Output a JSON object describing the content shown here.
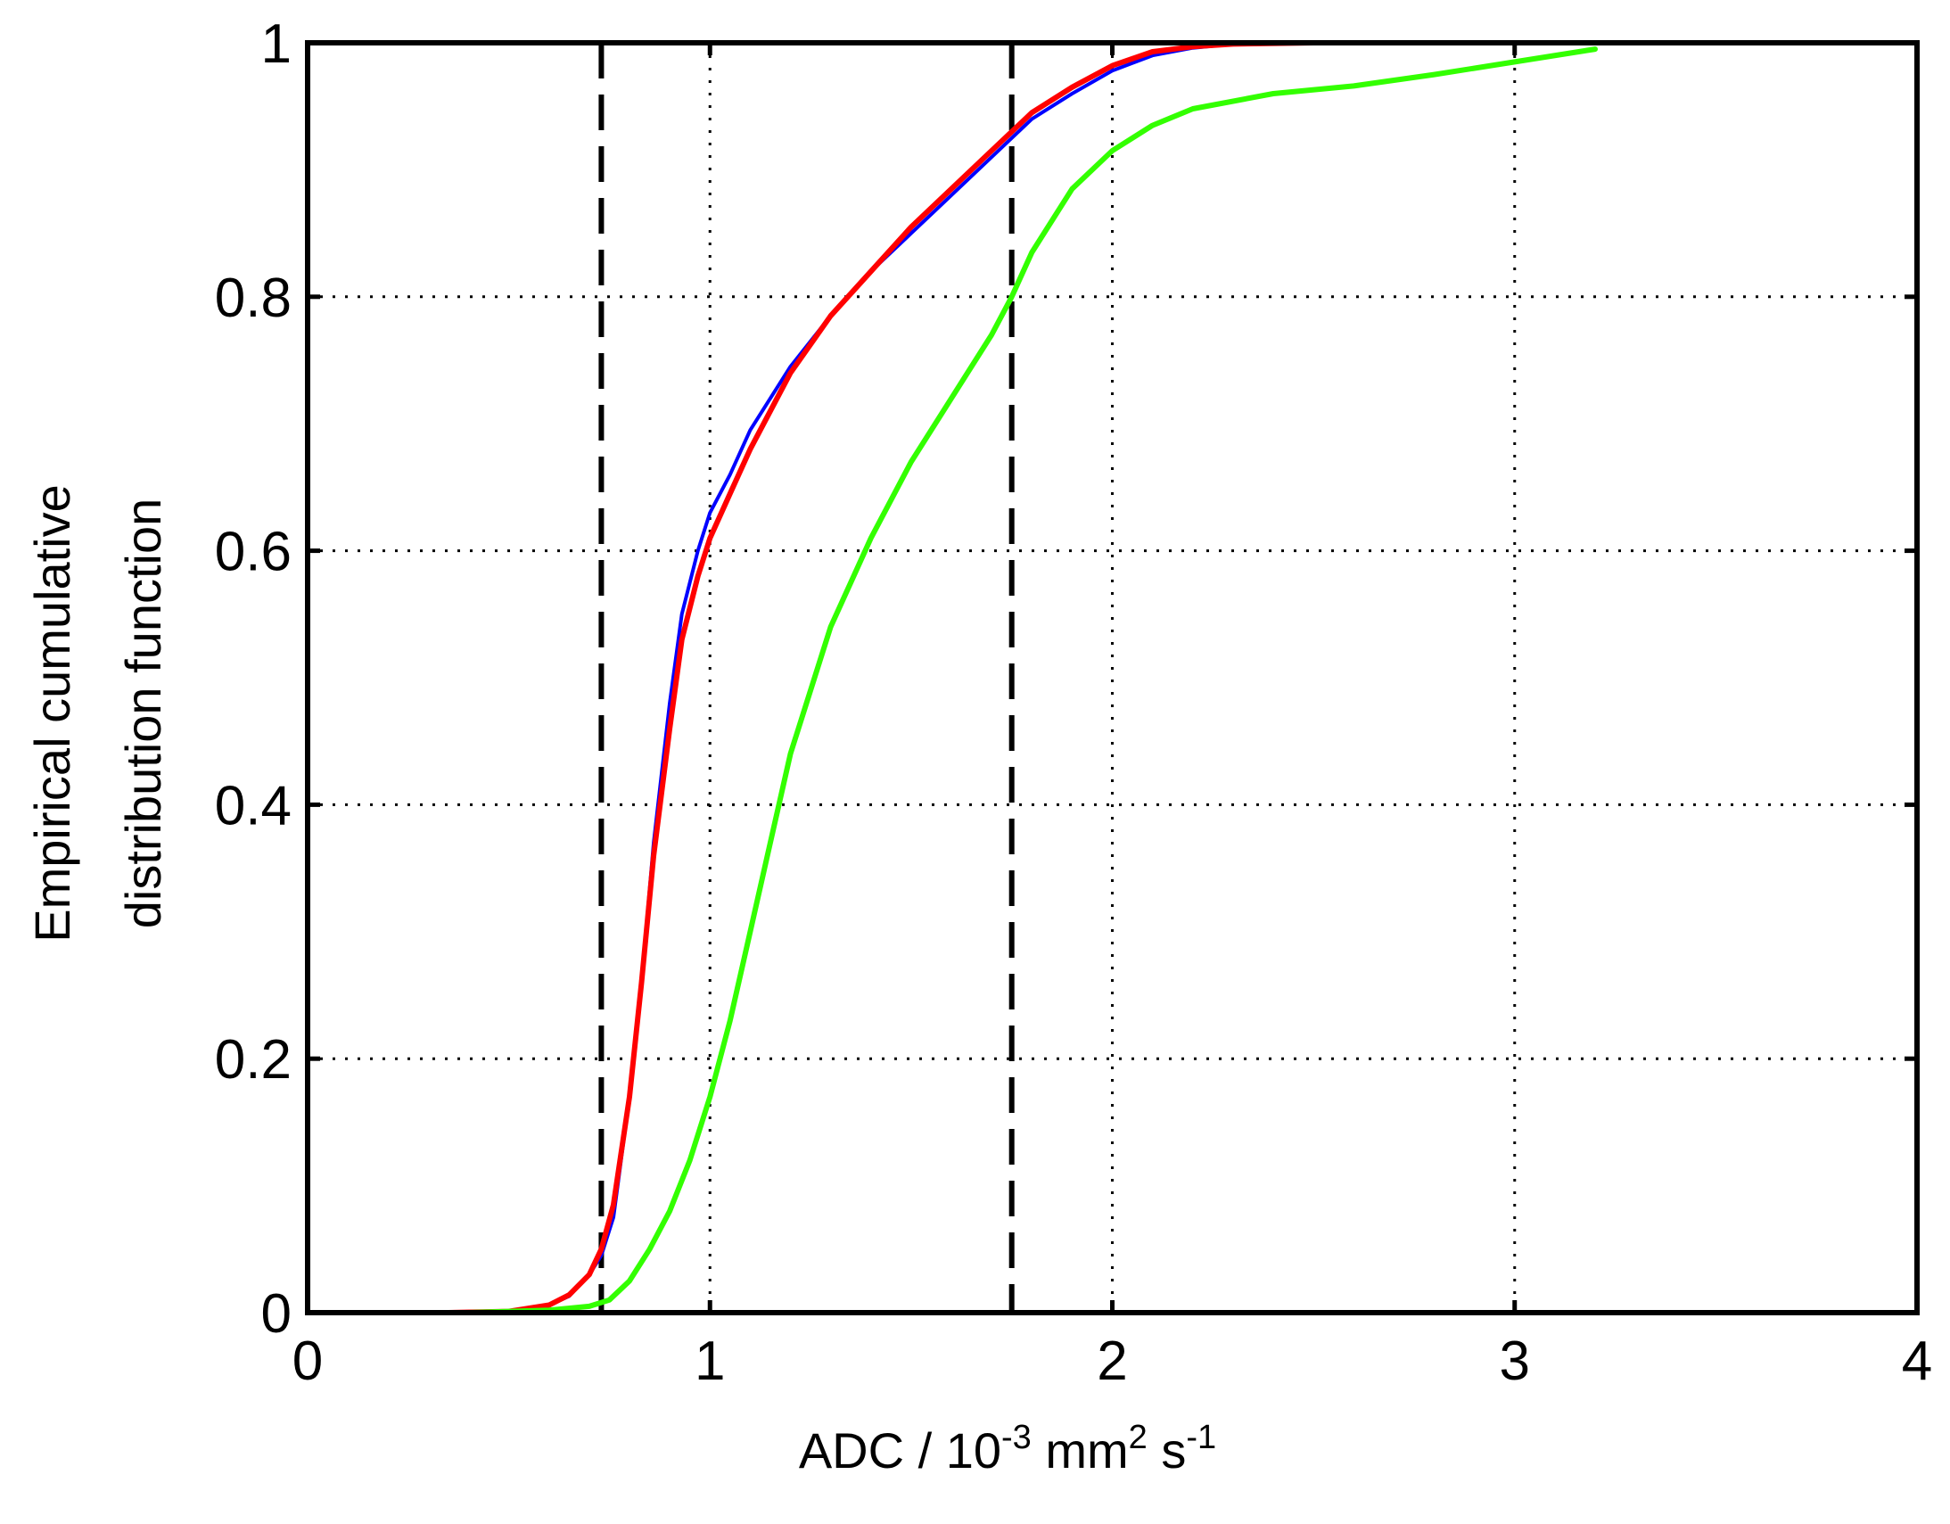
{
  "chart_data": {
    "type": "line",
    "title": "",
    "xlabel": {
      "main": "ADC / 10",
      "exp1": "-3",
      "mid": " mm",
      "exp2": "2",
      "mid2": " s",
      "exp3": "-1"
    },
    "ylabel": [
      "Empirical cumulative",
      "distribution function"
    ],
    "xlim": [
      0,
      4
    ],
    "ylim": [
      0,
      1
    ],
    "xticks": [
      0,
      1,
      2,
      3,
      4
    ],
    "xtick_labels": [
      "0",
      "1",
      "2",
      "3",
      "4"
    ],
    "yticks": [
      0,
      0.2,
      0.4,
      0.6,
      0.8,
      1
    ],
    "ytick_labels": [
      "0",
      "0.2",
      "0.4",
      "0.6",
      "0.8",
      "1"
    ],
    "grid": true,
    "reference_lines_x": [
      0.73,
      1.75
    ],
    "series": [
      {
        "color": "#0000ff",
        "points": [
          [
            0.35,
            0
          ],
          [
            0.5,
            0.001
          ],
          [
            0.6,
            0.006
          ],
          [
            0.65,
            0.013
          ],
          [
            0.7,
            0.03
          ],
          [
            0.73,
            0.045
          ],
          [
            0.76,
            0.075
          ],
          [
            0.8,
            0.17
          ],
          [
            0.83,
            0.26
          ],
          [
            0.86,
            0.37
          ],
          [
            0.9,
            0.48
          ],
          [
            0.93,
            0.55
          ],
          [
            0.97,
            0.6
          ],
          [
            1.0,
            0.63
          ],
          [
            1.05,
            0.66
          ],
          [
            1.1,
            0.695
          ],
          [
            1.2,
            0.745
          ],
          [
            1.3,
            0.785
          ],
          [
            1.4,
            0.82
          ],
          [
            1.5,
            0.85
          ],
          [
            1.6,
            0.88
          ],
          [
            1.7,
            0.91
          ],
          [
            1.75,
            0.925
          ],
          [
            1.8,
            0.94
          ],
          [
            1.9,
            0.96
          ],
          [
            2.0,
            0.978
          ],
          [
            2.1,
            0.99
          ],
          [
            2.2,
            0.996
          ],
          [
            2.3,
            0.999
          ],
          [
            2.5,
            1.0
          ],
          [
            2.75,
            1.0
          ]
        ]
      },
      {
        "color": "#ff0000",
        "points": [
          [
            0.35,
            0
          ],
          [
            0.5,
            0.001
          ],
          [
            0.6,
            0.006
          ],
          [
            0.65,
            0.014
          ],
          [
            0.7,
            0.03
          ],
          [
            0.73,
            0.05
          ],
          [
            0.76,
            0.085
          ],
          [
            0.8,
            0.17
          ],
          [
            0.83,
            0.26
          ],
          [
            0.86,
            0.36
          ],
          [
            0.9,
            0.46
          ],
          [
            0.93,
            0.53
          ],
          [
            0.97,
            0.58
          ],
          [
            1.0,
            0.61
          ],
          [
            1.05,
            0.645
          ],
          [
            1.1,
            0.68
          ],
          [
            1.2,
            0.74
          ],
          [
            1.3,
            0.785
          ],
          [
            1.4,
            0.82
          ],
          [
            1.5,
            0.855
          ],
          [
            1.6,
            0.885
          ],
          [
            1.7,
            0.915
          ],
          [
            1.75,
            0.93
          ],
          [
            1.8,
            0.945
          ],
          [
            1.9,
            0.965
          ],
          [
            2.0,
            0.982
          ],
          [
            2.1,
            0.993
          ],
          [
            2.2,
            0.997
          ],
          [
            2.3,
            0.999
          ],
          [
            2.5,
            1.0
          ],
          [
            2.7,
            1.0
          ]
        ]
      },
      {
        "color": "#33ff00",
        "points": [
          [
            0.4,
            0
          ],
          [
            0.6,
            0.002
          ],
          [
            0.7,
            0.005
          ],
          [
            0.75,
            0.01
          ],
          [
            0.8,
            0.025
          ],
          [
            0.85,
            0.05
          ],
          [
            0.9,
            0.08
          ],
          [
            0.95,
            0.12
          ],
          [
            1.0,
            0.17
          ],
          [
            1.05,
            0.23
          ],
          [
            1.1,
            0.3
          ],
          [
            1.15,
            0.37
          ],
          [
            1.2,
            0.44
          ],
          [
            1.3,
            0.54
          ],
          [
            1.4,
            0.61
          ],
          [
            1.5,
            0.67
          ],
          [
            1.6,
            0.72
          ],
          [
            1.7,
            0.77
          ],
          [
            1.75,
            0.8
          ],
          [
            1.8,
            0.835
          ],
          [
            1.9,
            0.885
          ],
          [
            2.0,
            0.915
          ],
          [
            2.1,
            0.935
          ],
          [
            2.2,
            0.948
          ],
          [
            2.4,
            0.96
          ],
          [
            2.6,
            0.966
          ],
          [
            2.8,
            0.975
          ],
          [
            3.0,
            0.985
          ],
          [
            3.2,
            0.995
          ]
        ]
      }
    ]
  }
}
